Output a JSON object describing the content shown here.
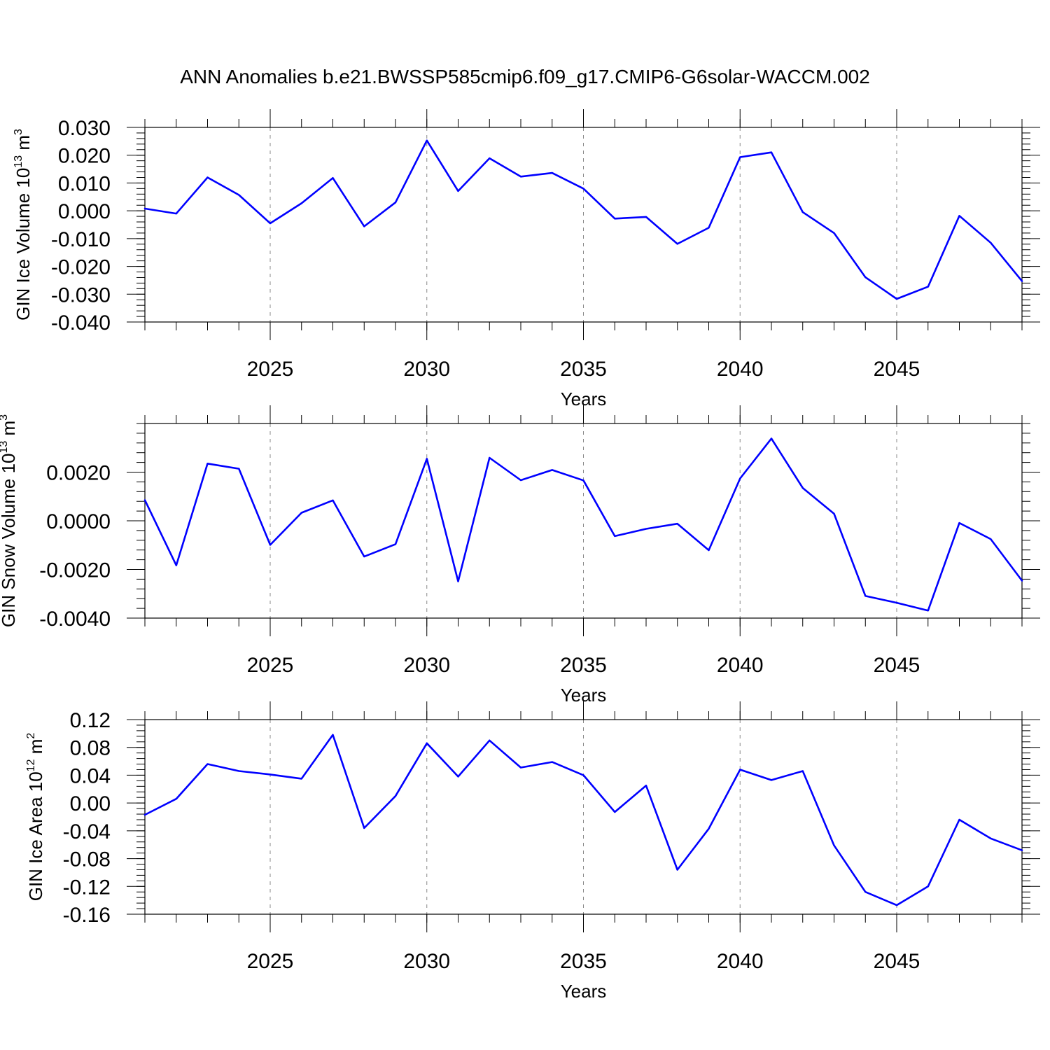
{
  "title": "ANN Anomalies b.e21.BWSSP585cmip6.f09_g17.CMIP6-G6solar-WACCM.002",
  "colors": {
    "series": "#0000ff",
    "axis": "#000000",
    "grid": "#888888",
    "background": "#ffffff"
  },
  "chart_data": [
    {
      "type": "line",
      "ylabel_main": "GIN Ice Volume 10",
      "ylabel_exp": "13",
      "ylabel_unit": " m",
      "ylabel_unit_exp": "3",
      "xlabel": "Years",
      "xlim": [
        2021,
        2049
      ],
      "ylim": [
        -0.04,
        0.03
      ],
      "xticks": [
        "2025",
        "2030",
        "2035",
        "2040",
        "2045"
      ],
      "yticks": [
        "0.030",
        "0.020",
        "0.010",
        "0.000",
        "-0.010",
        "-0.020",
        "-0.030",
        "-0.040"
      ],
      "grid": "vertical dashed at major x ticks",
      "x": [
        2021,
        2022,
        2023,
        2024,
        2025,
        2026,
        2027,
        2028,
        2029,
        2030,
        2031,
        2032,
        2033,
        2034,
        2035,
        2036,
        2037,
        2038,
        2039,
        2040,
        2041,
        2042,
        2043,
        2044,
        2045,
        2046,
        2047,
        2048,
        2049
      ],
      "y": [
        0.0008,
        -0.001,
        0.012,
        0.0057,
        -0.0045,
        0.0027,
        0.0118,
        -0.0056,
        0.003,
        0.0253,
        0.0071,
        0.0189,
        0.0123,
        0.0136,
        0.008,
        -0.0028,
        -0.0022,
        -0.0119,
        -0.0061,
        0.0193,
        0.021,
        -0.0005,
        -0.008,
        -0.0239,
        -0.0317,
        -0.0273,
        -0.0018,
        -0.0115,
        -0.0253
      ]
    },
    {
      "type": "line",
      "ylabel_main": "GIN Snow Volume 10",
      "ylabel_exp": "13",
      "ylabel_unit": " m",
      "ylabel_unit_exp": "3",
      "xlabel": "Years",
      "xlim": [
        2021,
        2049
      ],
      "ylim": [
        -0.004,
        0.004
      ],
      "xticks": [
        "2025",
        "2030",
        "2035",
        "2040",
        "2045"
      ],
      "yticks": [
        "0.0020",
        "0.0000",
        "-0.0020",
        "-0.0040"
      ],
      "grid": "vertical dashed at major x ticks",
      "x": [
        2021,
        2022,
        2023,
        2024,
        2025,
        2026,
        2027,
        2028,
        2029,
        2030,
        2031,
        2032,
        2033,
        2034,
        2035,
        2036,
        2037,
        2038,
        2039,
        2040,
        2041,
        2042,
        2043,
        2044,
        2045,
        2046,
        2047,
        2048,
        2049
      ],
      "y": [
        0.00085,
        -0.00183,
        0.00235,
        0.00214,
        -0.00099,
        0.00033,
        0.00084,
        -0.00147,
        -0.00096,
        0.00255,
        -0.00249,
        0.00259,
        0.00167,
        0.00209,
        0.00166,
        -0.00063,
        -0.00033,
        -0.00012,
        -0.00121,
        0.00174,
        0.00338,
        0.00135,
        0.00029,
        -0.00309,
        -0.00337,
        -0.00369,
        -9e-05,
        -0.00075,
        -0.00246
      ]
    },
    {
      "type": "line",
      "ylabel_main": "GIN Ice Area 10",
      "ylabel_exp": "12",
      "ylabel_unit": " m",
      "ylabel_unit_exp": "2",
      "xlabel": "Years",
      "xlim": [
        2021,
        2049
      ],
      "ylim": [
        -0.16,
        0.12
      ],
      "xticks": [
        "2025",
        "2030",
        "2035",
        "2040",
        "2045"
      ],
      "yticks": [
        "0.12",
        "0.08",
        "0.04",
        "0.00",
        "-0.04",
        "-0.08",
        "-0.12",
        "-0.16"
      ],
      "grid": "vertical dashed at major x ticks",
      "x": [
        2021,
        2022,
        2023,
        2024,
        2025,
        2026,
        2027,
        2028,
        2029,
        2030,
        2031,
        2032,
        2033,
        2034,
        2035,
        2036,
        2037,
        2038,
        2039,
        2040,
        2041,
        2042,
        2043,
        2044,
        2045,
        2046,
        2047,
        2048,
        2049
      ],
      "y": [
        -0.017,
        0.006,
        0.056,
        0.046,
        0.041,
        0.035,
        0.098,
        -0.036,
        0.01,
        0.086,
        0.038,
        0.09,
        0.051,
        0.059,
        0.04,
        -0.013,
        0.025,
        -0.096,
        -0.037,
        0.048,
        0.033,
        0.046,
        -0.061,
        -0.128,
        -0.147,
        -0.12,
        -0.024,
        -0.051,
        -0.068
      ]
    }
  ]
}
